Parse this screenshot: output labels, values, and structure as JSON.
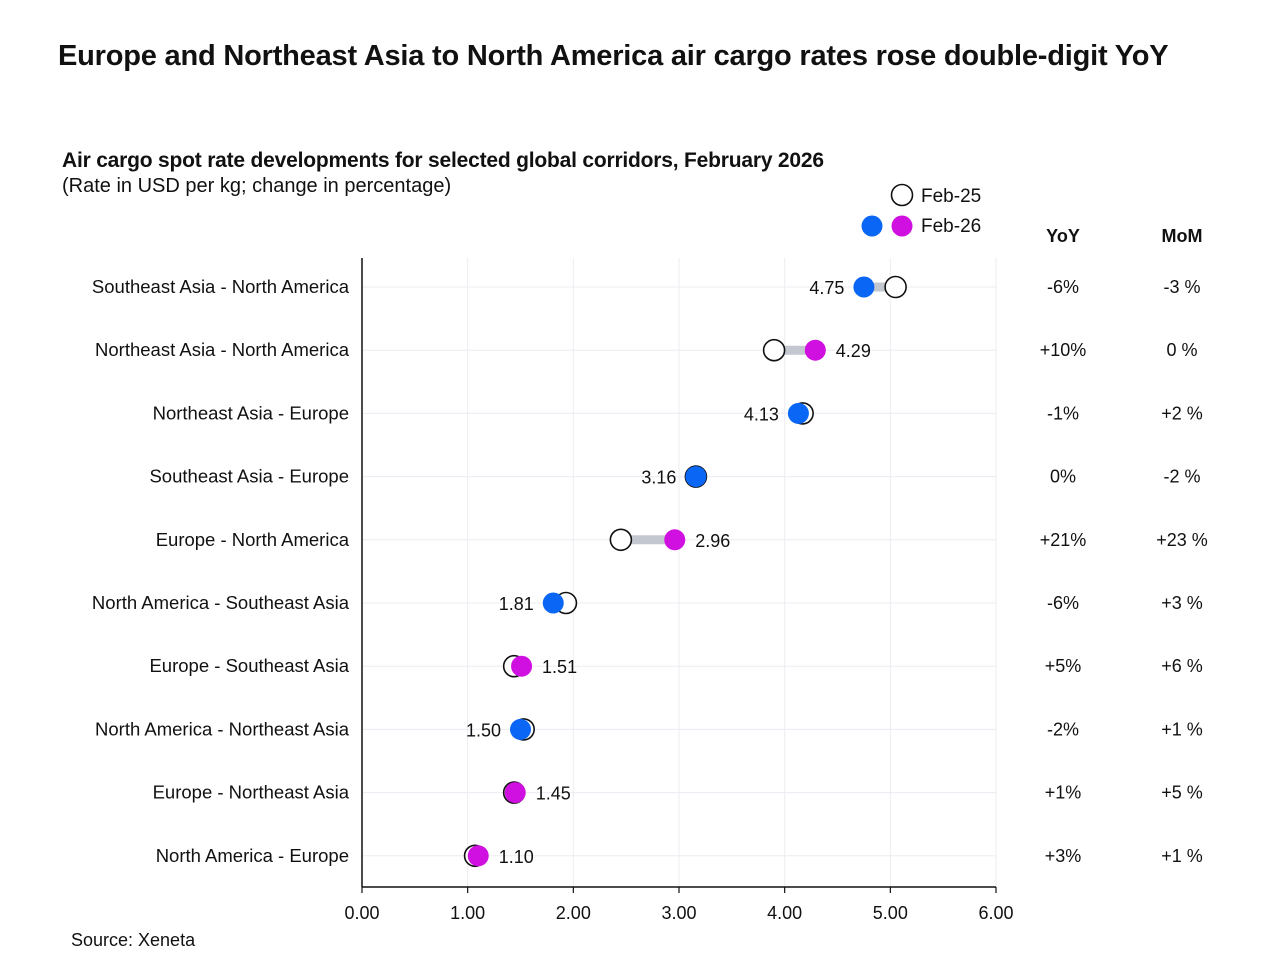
{
  "title": "Europe and Northeast Asia to North America air cargo rates rose double-digit YoY",
  "subtitle": "Air cargo spot rate developments for selected global corridors, February 2026",
  "subtitle_note": "(Rate in USD per kg; change in percentage)",
  "source": "Source: Xeneta",
  "chart_data": {
    "type": "dumbbell",
    "xlim": [
      0,
      6
    ],
    "xticks": [
      "0.00",
      "1.00",
      "2.00",
      "3.00",
      "4.00",
      "5.00",
      "6.00"
    ],
    "grid": true,
    "legend": {
      "placement": "top-right",
      "entries": [
        "Feb-25",
        "Feb-26"
      ]
    },
    "colors": {
      "increase": "#d010e0",
      "decrease": "#0a66f5",
      "feb25": "#ffffff",
      "connector": "#c3c7cf"
    },
    "column_headers": {
      "yoy": "YoY",
      "mom": "MoM"
    },
    "categories": [
      "Southeast Asia - North America",
      "Northeast Asia - North America",
      "Northeast Asia - Europe",
      "Southeast Asia - Europe",
      "Europe - North America",
      "North America - Southeast Asia",
      "Europe - Southeast Asia",
      "North America - Northeast Asia",
      "Europe - Northeast Asia",
      "North America - Europe"
    ],
    "series": [
      {
        "name": "Feb-25",
        "values": [
          5.05,
          3.9,
          4.17,
          3.16,
          2.45,
          1.93,
          1.44,
          1.53,
          1.44,
          1.07
        ]
      },
      {
        "name": "Feb-26",
        "values": [
          4.75,
          4.29,
          4.13,
          3.16,
          2.96,
          1.81,
          1.51,
          1.5,
          1.45,
          1.1
        ],
        "labels": [
          "4.75",
          "4.29",
          "4.13",
          "3.16",
          "2.96",
          "1.81",
          "1.51",
          "1.50",
          "1.45",
          "1.10"
        ]
      }
    ],
    "yoy": [
      "-6%",
      "+10%",
      "-1%",
      "0%",
      "+21%",
      "-6%",
      "+5%",
      "-2%",
      "+1%",
      "+3%"
    ],
    "mom": [
      "-3 %",
      "0 %",
      "+2 %",
      "-2 %",
      "+23 %",
      "+3 %",
      "+6 %",
      "+1 %",
      "+5 %",
      "+1 %"
    ]
  }
}
